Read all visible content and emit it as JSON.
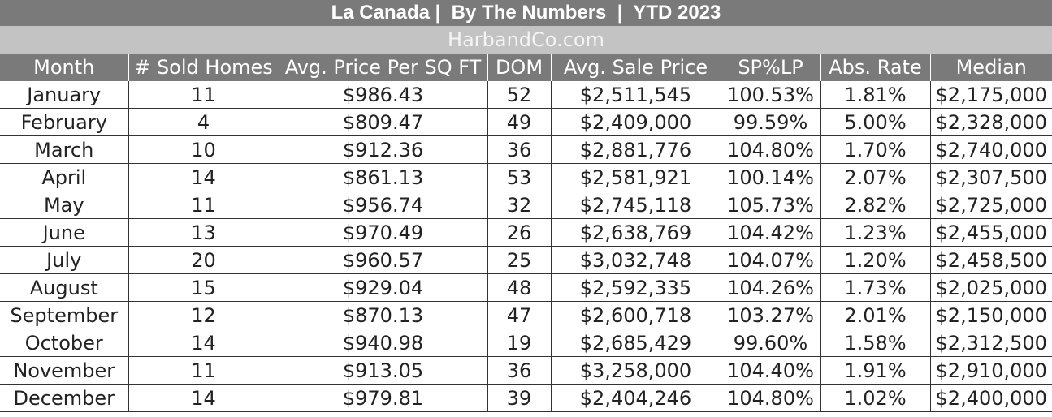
{
  "header": {
    "title": "La Canada |  By The Numbers  |  YTD 2023",
    "subtitle": "HarbandCo.com"
  },
  "table": {
    "columns": [
      "Month",
      "# Sold Homes",
      "Avg. Price Per SQ FT",
      "DOM",
      "Avg. Sale Price",
      "SP%LP",
      "Abs. Rate",
      "Median"
    ],
    "rows": [
      [
        "January",
        "11",
        "$986.43",
        "52",
        "$2,511,545",
        "100.53%",
        "1.81%",
        "$2,175,000"
      ],
      [
        "February",
        "4",
        "$809.47",
        "49",
        "$2,409,000",
        "99.59%",
        "5.00%",
        "$2,328,000"
      ],
      [
        "March",
        "10",
        "$912.36",
        "36",
        "$2,881,776",
        "104.80%",
        "1.70%",
        "$2,740,000"
      ],
      [
        "April",
        "14",
        "$861.13",
        "53",
        "$2,581,921",
        "100.14%",
        "2.07%",
        "$2,307,500"
      ],
      [
        "May",
        "11",
        "$956.74",
        "32",
        "$2,745,118",
        "105.73%",
        "2.82%",
        "$2,725,000"
      ],
      [
        "June",
        "13",
        "$970.49",
        "26",
        "$2,638,769",
        "104.42%",
        "1.23%",
        "$2,455,000"
      ],
      [
        "July",
        "20",
        "$960.57",
        "25",
        "$3,032,748",
        "104.07%",
        "1.20%",
        "$2,458,500"
      ],
      [
        "August",
        "15",
        "$929.04",
        "48",
        "$2,592,335",
        "104.26%",
        "1.73%",
        "$2,025,000"
      ],
      [
        "September",
        "12",
        "$870.13",
        "47",
        "$2,600,718",
        "103.27%",
        "2.01%",
        "$2,150,000"
      ],
      [
        "October",
        "14",
        "$940.98",
        "19",
        "$2,685,429",
        "99.60%",
        "1.58%",
        "$2,312,500"
      ],
      [
        "November",
        "11",
        "$913.05",
        "36",
        "$3,258,000",
        "104.40%",
        "1.91%",
        "$2,910,000"
      ],
      [
        "December",
        "14",
        "$979.81",
        "39",
        "$2,404,246",
        "104.80%",
        "1.02%",
        "$2,400,000"
      ]
    ]
  },
  "colors": {
    "header_bg": "#7a7a7a",
    "subheader_bg": "#c3c3c3"
  }
}
